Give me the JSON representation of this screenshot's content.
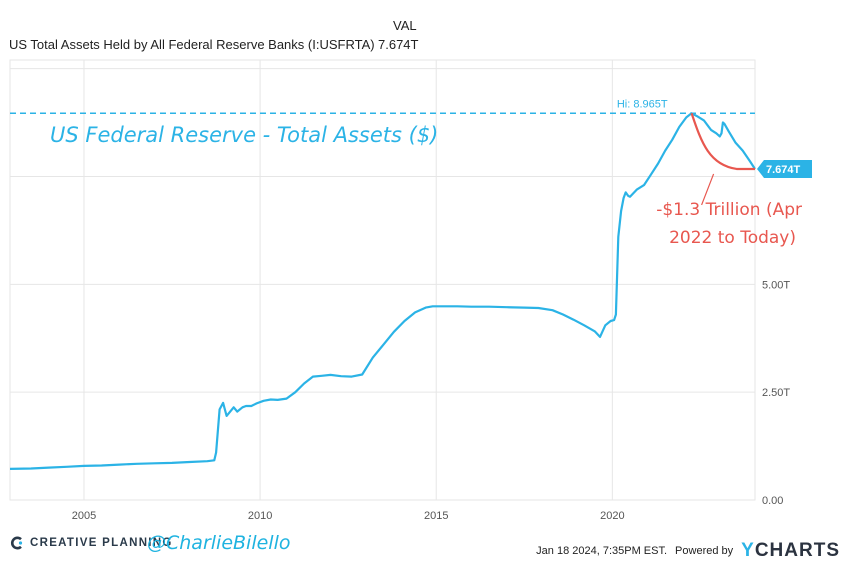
{
  "legend": {
    "column_header": "VAL",
    "series_name": "US Total Assets Held by All Federal Reserve Banks (I:USFRTA)",
    "series_value": "7.674T"
  },
  "footer": {
    "brand": "CREATIVE PLANNING",
    "handle": "@CharlieBilello",
    "timestamp": "Jan 18 2024, 7:35PM EST.",
    "powered_by": "Powered by",
    "ycharts_y": "Y",
    "ycharts_rest": "CHARTS"
  },
  "colors": {
    "series": "#2bb3e6",
    "annotation": "#e8574f",
    "grid": "#e6e6e6",
    "axis_text": "#555555"
  },
  "chart_data": {
    "type": "line",
    "title": "US Federal Reserve - Total Assets ($)",
    "xlabel": "",
    "ylabel": "",
    "y_unit": "trillion USD",
    "xlim": [
      2002.9,
      2024.05
    ],
    "ylim": [
      0,
      10.2
    ],
    "x_ticks": [
      2005,
      2010,
      2015,
      2020
    ],
    "x_tick_labels": [
      "2005",
      "2010",
      "2015",
      "2020"
    ],
    "y_ticks": [
      0,
      2.5,
      5.0,
      7.5,
      10.0
    ],
    "y_tick_labels": [
      "0.00",
      "2.50T",
      "5.00T",
      "",
      ""
    ],
    "grid": true,
    "high": {
      "label": "Hi: 8.965T",
      "value": 8.965,
      "x": 2022.25
    },
    "last": {
      "label": "7.674T",
      "value": 7.674,
      "x": 2024.05
    },
    "annotation": {
      "lines": [
        "-$1.3 Trillion (Apr",
        "2022 to Today)"
      ]
    },
    "series": [
      {
        "x": [
          2002.9,
          2003.5,
          2004.0,
          2004.5,
          2005.0,
          2005.5,
          2006.0,
          2006.5,
          2007.0,
          2007.5,
          2008.0,
          2008.5,
          2008.7,
          2008.75,
          2008.85,
          2008.95,
          2009.05,
          2009.15,
          2009.25,
          2009.35,
          2009.5,
          2009.6,
          2009.75,
          2009.9,
          2010.1,
          2010.3,
          2010.5,
          2010.75,
          2011.0,
          2011.25,
          2011.5,
          2011.75,
          2012.0,
          2012.3,
          2012.6,
          2012.9,
          2013.2,
          2013.5,
          2013.8,
          2014.1,
          2014.4,
          2014.7,
          2014.9,
          2015.2,
          2015.6,
          2016.0,
          2016.5,
          2017.0,
          2017.5,
          2017.9,
          2018.3,
          2018.6,
          2018.9,
          2019.2,
          2019.5,
          2019.65,
          2019.8,
          2019.95,
          2020.05,
          2020.1,
          2020.17,
          2020.25,
          2020.32,
          2020.38,
          2020.45,
          2020.5,
          2020.7,
          2020.9,
          2021.1,
          2021.3,
          2021.5,
          2021.7,
          2021.9,
          2022.1,
          2022.25,
          2022.4,
          2022.6,
          2022.8,
          2022.95,
          2023.05,
          2023.1,
          2023.14,
          2023.18,
          2023.3,
          2023.5,
          2023.7,
          2023.9,
          2024.05
        ],
        "values": [
          0.72,
          0.73,
          0.75,
          0.77,
          0.79,
          0.8,
          0.82,
          0.84,
          0.85,
          0.86,
          0.88,
          0.9,
          0.92,
          1.1,
          2.1,
          2.25,
          1.95,
          2.05,
          2.15,
          2.05,
          2.15,
          2.18,
          2.18,
          2.24,
          2.3,
          2.33,
          2.32,
          2.35,
          2.5,
          2.7,
          2.86,
          2.88,
          2.9,
          2.87,
          2.86,
          2.91,
          3.3,
          3.6,
          3.9,
          4.15,
          4.35,
          4.46,
          4.49,
          4.49,
          4.49,
          4.48,
          4.48,
          4.47,
          4.46,
          4.45,
          4.4,
          4.3,
          4.18,
          4.05,
          3.91,
          3.78,
          4.05,
          4.15,
          4.17,
          4.3,
          6.1,
          6.7,
          7.0,
          7.13,
          7.05,
          7.03,
          7.2,
          7.3,
          7.55,
          7.8,
          8.1,
          8.35,
          8.65,
          8.87,
          8.965,
          8.9,
          8.8,
          8.58,
          8.5,
          8.43,
          8.5,
          8.75,
          8.72,
          8.55,
          8.28,
          8.1,
          7.86,
          7.674
        ]
      }
    ]
  }
}
